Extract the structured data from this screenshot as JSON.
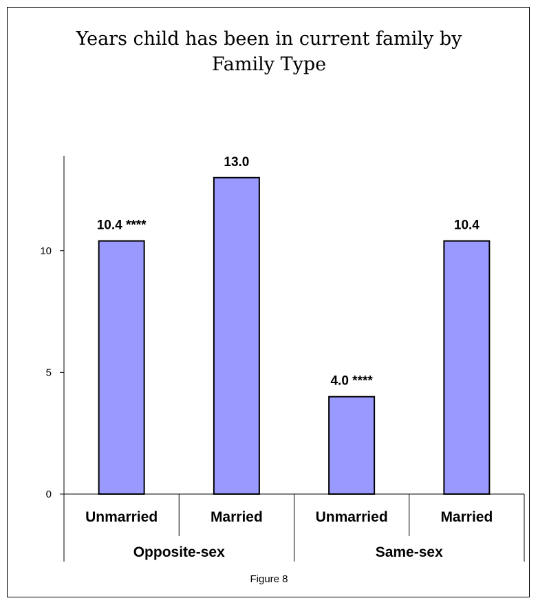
{
  "chart_data": {
    "type": "bar",
    "title": "Years child has been in current family by Family Type",
    "title_lines": [
      "Years child has been in current family by",
      "Family Type"
    ],
    "caption": "Figure 8",
    "groups": [
      {
        "label": "Opposite-sex",
        "categories": [
          "Unmarried",
          "Married"
        ]
      },
      {
        "label": "Same-sex",
        "categories": [
          "Unmarried",
          "Married"
        ]
      }
    ],
    "categories": [
      "Unmarried",
      "Married",
      "Unmarried",
      "Married"
    ],
    "values": [
      10.4,
      13.0,
      4.0,
      10.4
    ],
    "data_labels": [
      "10.4 ****",
      "13.0",
      "4.0 ****",
      "10.4"
    ],
    "yticks": [
      0,
      5,
      10
    ],
    "ylim": [
      0,
      13.9
    ],
    "xlabel": "",
    "ylabel": "",
    "grid": false,
    "bar_color": "#9999ff",
    "bar_edge_color": "#000000"
  }
}
